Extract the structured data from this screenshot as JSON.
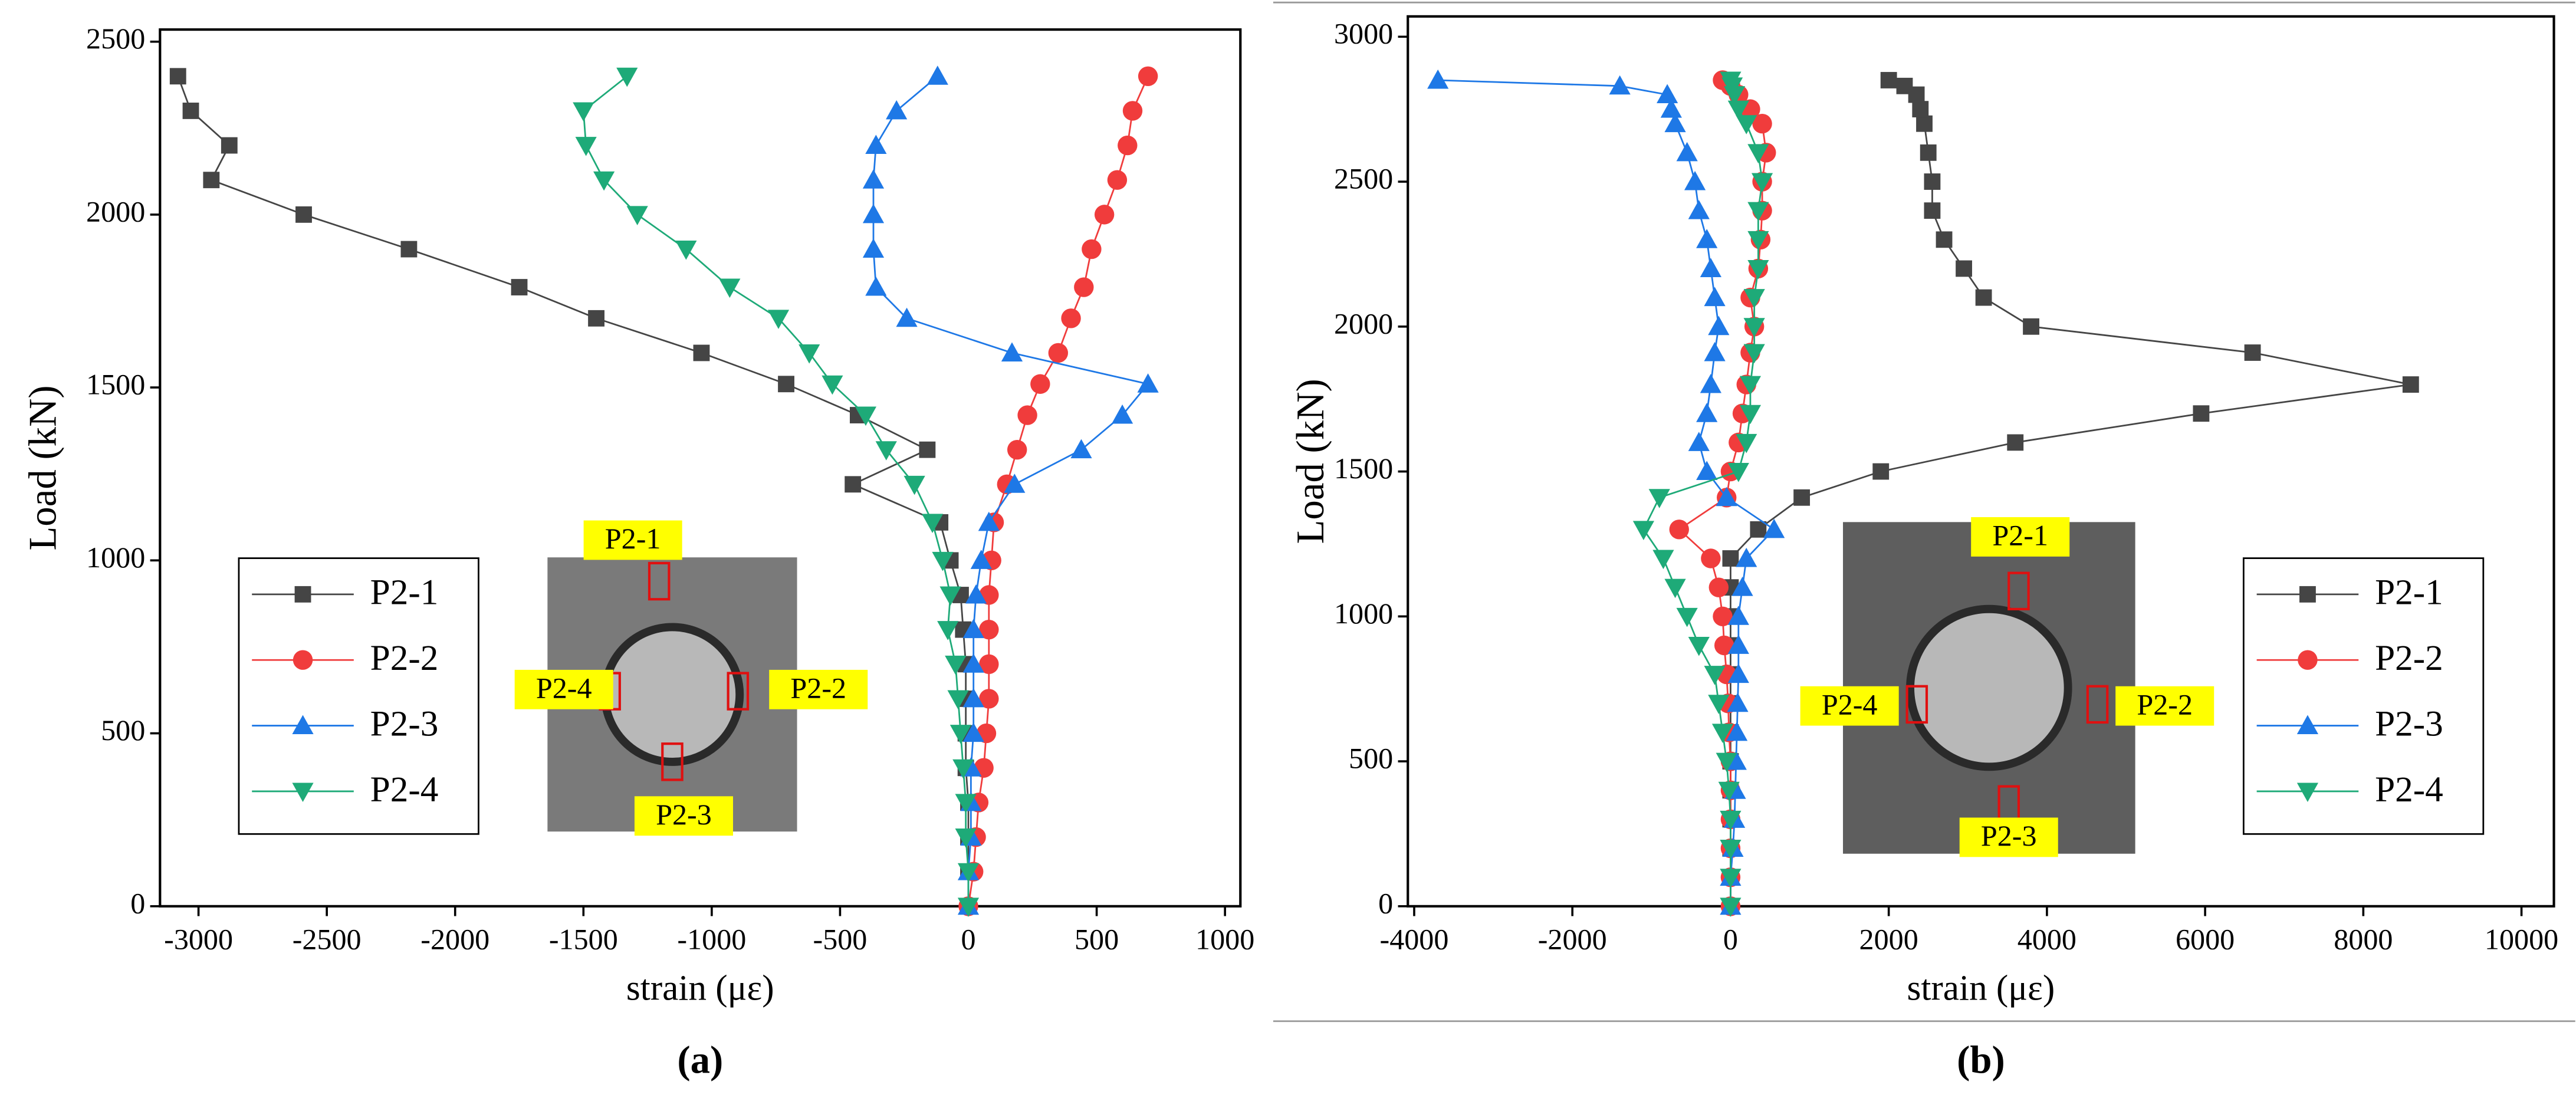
{
  "chart_data": [
    {
      "type": "line",
      "caption": "(a)",
      "x_label": "strain (με)",
      "y_label": "Load (kN)",
      "legend": "lower left",
      "xlim": [
        -3150,
        1060
      ],
      "xticks": [
        -3000,
        -2500,
        -2000,
        -1500,
        -1000,
        -500,
        0,
        500,
        1000
      ],
      "ylim": [
        0,
        2535
      ],
      "yticks": [
        0,
        500,
        1000,
        1500,
        2000,
        2500
      ],
      "annotations": [
        "P2-1",
        "P2-2",
        "P2-3",
        "P2-4"
      ],
      "series": [
        {
          "name": "P2-1",
          "color": "#454545",
          "marker": "square",
          "x": [
            0,
            0,
            0,
            0,
            -10,
            -10,
            -10,
            -10,
            -20,
            -30,
            -70,
            -110,
            -450,
            -160,
            -430,
            -710,
            -1040,
            -1450,
            -1750,
            -2180,
            -2590,
            -2950,
            -2880,
            -3030,
            -3080
          ],
          "values": [
            0,
            100,
            200,
            300,
            400,
            500,
            600,
            700,
            800,
            900,
            1000,
            1110,
            1220,
            1320,
            1420,
            1510,
            1600,
            1700,
            1790,
            1900,
            2000,
            2100,
            2200,
            2300,
            2400
          ]
        },
        {
          "name": "P2-2",
          "color": "#f03c3c",
          "marker": "circle",
          "x": [
            0,
            20,
            30,
            40,
            60,
            70,
            80,
            80,
            80,
            80,
            90,
            100,
            150,
            190,
            230,
            280,
            350,
            400,
            450,
            480,
            530,
            580,
            620,
            640,
            700
          ],
          "values": [
            0,
            100,
            200,
            300,
            400,
            500,
            600,
            700,
            800,
            900,
            1000,
            1110,
            1220,
            1320,
            1420,
            1510,
            1600,
            1700,
            1790,
            1900,
            2000,
            2100,
            2200,
            2300,
            2400
          ]
        },
        {
          "name": "P2-3",
          "color": "#1e78e6",
          "marker": "up",
          "x": [
            0,
            0,
            10,
            10,
            10,
            20,
            20,
            20,
            20,
            30,
            50,
            80,
            180,
            440,
            600,
            700,
            170,
            -240,
            -360,
            -370,
            -370,
            -370,
            -360,
            -280,
            -120
          ],
          "values": [
            0,
            100,
            200,
            300,
            400,
            500,
            600,
            700,
            800,
            900,
            1000,
            1110,
            1220,
            1320,
            1420,
            1510,
            1600,
            1700,
            1790,
            1900,
            2000,
            2100,
            2200,
            2300,
            2400
          ]
        },
        {
          "name": "P2-4",
          "color": "#1eaa78",
          "marker": "down",
          "x": [
            0,
            0,
            -10,
            -10,
            -20,
            -30,
            -40,
            -50,
            -80,
            -70,
            -100,
            -140,
            -210,
            -320,
            -400,
            -530,
            -620,
            -740,
            -930,
            -1100,
            -1290,
            -1420,
            -1490,
            -1500,
            -1330
          ],
          "values": [
            0,
            100,
            200,
            300,
            400,
            500,
            600,
            700,
            800,
            900,
            1000,
            1110,
            1220,
            1320,
            1420,
            1510,
            1600,
            1700,
            1790,
            1900,
            2000,
            2100,
            2200,
            2300,
            2400
          ]
        }
      ]
    },
    {
      "type": "line",
      "caption": "(b)",
      "x_label": "strain (με)",
      "y_label": "Load (kN)",
      "legend": "lower right",
      "xlim": [
        -4080,
        10410
      ],
      "xticks": [
        -4000,
        -2000,
        0,
        2000,
        4000,
        6000,
        8000,
        10000
      ],
      "ylim": [
        0,
        3070
      ],
      "yticks": [
        0,
        500,
        1000,
        1500,
        2000,
        2500,
        3000
      ],
      "annotations": [
        "P2-1",
        "P2-2",
        "P2-3",
        "P2-4"
      ],
      "series": [
        {
          "name": "P2-1",
          "color": "#454545",
          "marker": "square",
          "x": [
            0,
            0,
            0,
            0,
            0,
            0,
            0,
            0,
            0,
            0,
            0,
            0,
            0,
            350,
            900,
            1900,
            3600,
            5950,
            8600,
            6600,
            3800,
            3200,
            2950,
            2700,
            2550,
            2550,
            2500,
            2450,
            2400,
            2350,
            2200,
            2000
          ],
          "values": [
            0,
            100,
            200,
            300,
            400,
            500,
            600,
            700,
            800,
            900,
            1000,
            1100,
            1200,
            1300,
            1410,
            1500,
            1600,
            1700,
            1800,
            1910,
            2000,
            2100,
            2200,
            2300,
            2400,
            2500,
            2600,
            2700,
            2750,
            2800,
            2830,
            2850
          ]
        },
        {
          "name": "P2-2",
          "color": "#f03c3c",
          "marker": "circle",
          "x": [
            0,
            0,
            0,
            0,
            0,
            0,
            -20,
            -30,
            -50,
            -80,
            -100,
            -150,
            -250,
            -650,
            -50,
            0,
            100,
            150,
            200,
            250,
            300,
            250,
            350,
            380,
            400,
            400,
            450,
            400,
            250,
            100,
            0,
            -100
          ],
          "values": [
            0,
            100,
            200,
            300,
            400,
            500,
            600,
            700,
            800,
            900,
            1000,
            1100,
            1200,
            1300,
            1410,
            1500,
            1600,
            1700,
            1800,
            1910,
            2000,
            2100,
            2200,
            2300,
            2400,
            2500,
            2600,
            2700,
            2750,
            2800,
            2830,
            2850
          ]
        },
        {
          "name": "P2-3",
          "color": "#1e78e6",
          "marker": "up",
          "x": [
            0,
            0,
            30,
            50,
            60,
            70,
            80,
            90,
            100,
            100,
            100,
            150,
            200,
            550,
            -50,
            -300,
            -400,
            -300,
            -250,
            -200,
            -150,
            -200,
            -250,
            -300,
            -400,
            -450,
            -550,
            -700,
            -750,
            -800,
            -1400,
            -3700
          ],
          "values": [
            0,
            100,
            200,
            300,
            400,
            500,
            600,
            700,
            800,
            900,
            1000,
            1100,
            1200,
            1300,
            1410,
            1500,
            1600,
            1700,
            1800,
            1910,
            2000,
            2100,
            2200,
            2300,
            2400,
            2500,
            2600,
            2700,
            2750,
            2800,
            2830,
            2850
          ]
        },
        {
          "name": "P2-4",
          "color": "#1eaa78",
          "marker": "down",
          "x": [
            0,
            0,
            0,
            0,
            -20,
            -50,
            -100,
            -150,
            -200,
            -400,
            -550,
            -700,
            -850,
            -1100,
            -900,
            100,
            200,
            250,
            250,
            300,
            300,
            300,
            350,
            350,
            350,
            400,
            350,
            200,
            100,
            50,
            20,
            0
          ],
          "values": [
            0,
            100,
            200,
            300,
            400,
            500,
            600,
            700,
            800,
            900,
            1000,
            1100,
            1200,
            1300,
            1410,
            1500,
            1600,
            1700,
            1800,
            1910,
            2000,
            2100,
            2200,
            2300,
            2400,
            2500,
            2600,
            2700,
            2750,
            2800,
            2830,
            2850
          ]
        }
      ]
    }
  ]
}
